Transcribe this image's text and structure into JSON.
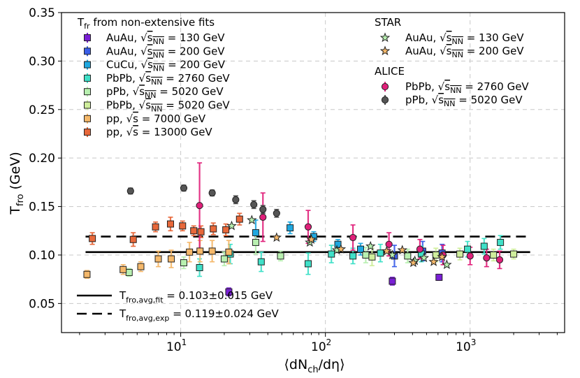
{
  "chart_data": {
    "type": "scatter",
    "xscale": "log",
    "xlim": [
      1.5,
      4500
    ],
    "ylim": [
      0.02,
      0.35
    ],
    "xlabel": "⟨dN_ch/dη⟩",
    "ylabel": "T_fro (GeV)",
    "grid": true,
    "xticks": [
      10,
      100,
      1000
    ],
    "xtick_labels": [
      "10¹",
      "10²",
      "10³"
    ],
    "yticks": [
      0.05,
      0.1,
      0.15,
      0.2,
      0.25,
      0.3,
      0.35
    ],
    "ytick_labels": [
      "0.05",
      "0.10",
      "0.15",
      "0.20",
      "0.25",
      "0.30",
      "0.35"
    ],
    "legend_fit_title": "T_fr from non-extensive fits",
    "legend_star_title": "STAR",
    "legend_alice_title": "ALICE",
    "fit_series": [
      {
        "name": "AuAu, √s_NN = 130 GeV",
        "color": "#7a1fd6",
        "points": [
          [
            21.5,
            0.062,
            0.004
          ],
          [
            290,
            0.073,
            0.004
          ],
          [
            610,
            0.077,
            0.003
          ]
        ]
      },
      {
        "name": "AuAu, √s_NN = 200 GeV",
        "color": "#3a5ee8",
        "points": [
          [
            300,
            0.099,
            0.011
          ],
          [
            470,
            0.104,
            0.01
          ],
          [
            640,
            0.102,
            0.009
          ]
        ]
      },
      {
        "name": "CuCu, √s_NN = 200 GeV",
        "color": "#1fa8e0",
        "points": [
          [
            33,
            0.123,
            0.013
          ],
          [
            57,
            0.128,
            0.006
          ],
          [
            83,
            0.119,
            0.005
          ],
          [
            122,
            0.111,
            0.005
          ],
          [
            175,
            0.106,
            0.006
          ]
        ]
      },
      {
        "name": "PbPb, √s_NN = 2760 GeV",
        "color": "#3fe0c8",
        "points": [
          [
            13.5,
            0.087,
            0.009
          ],
          [
            22,
            0.101,
            0.01
          ],
          [
            36,
            0.093,
            0.01
          ],
          [
            76,
            0.091,
            0.011
          ],
          [
            110,
            0.101,
            0.009
          ],
          [
            155,
            0.099,
            0.008
          ],
          [
            240,
            0.102,
            0.009
          ],
          [
            460,
            0.101,
            0.008
          ],
          [
            960,
            0.106,
            0.008
          ],
          [
            1250,
            0.109,
            0.008
          ],
          [
            1620,
            0.113,
            0.007
          ]
        ]
      },
      {
        "name": "pPb, √s_NN = 5020 GeV",
        "color": "#b8f0b0",
        "points": [
          [
            4.4,
            0.082,
            0.004
          ],
          [
            10.5,
            0.092,
            0.006
          ],
          [
            20,
            0.096,
            0.007
          ],
          [
            33,
            0.113,
            0.012
          ],
          [
            49,
            0.099,
            0.005
          ],
          [
            190,
            0.1,
            0.008
          ],
          [
            370,
            0.099,
            0.007
          ]
        ]
      },
      {
        "name": "PbPb, √s_NN = 5020 GeV",
        "color": "#cfee9c",
        "points": [
          [
            210,
            0.098,
            0.009
          ],
          [
            580,
            0.1,
            0.007
          ],
          [
            850,
            0.101,
            0.006
          ],
          [
            1450,
            0.1,
            0.006
          ],
          [
            2000,
            0.101,
            0.005
          ]
        ]
      },
      {
        "name": "pp, √s = 7000 GeV",
        "color": "#f5b86a",
        "points": [
          [
            2.25,
            0.08,
            0.004
          ],
          [
            4.0,
            0.085,
            0.005
          ],
          [
            5.3,
            0.088,
            0.005
          ],
          [
            7.0,
            0.096,
            0.008
          ],
          [
            8.6,
            0.096,
            0.009
          ],
          [
            11.5,
            0.103,
            0.01
          ],
          [
            13.6,
            0.104,
            0.011
          ],
          [
            16.5,
            0.104,
            0.011
          ],
          [
            21.5,
            0.103,
            0.012
          ]
        ]
      },
      {
        "name": "pp, √s = 13000 GeV",
        "color": "#e8683a",
        "points": [
          [
            2.45,
            0.117,
            0.006
          ],
          [
            4.7,
            0.116,
            0.007
          ],
          [
            6.7,
            0.129,
            0.005
          ],
          [
            8.5,
            0.132,
            0.007
          ],
          [
            10.3,
            0.13,
            0.005
          ],
          [
            12.3,
            0.125,
            0.005
          ],
          [
            13.8,
            0.124,
            0.006
          ],
          [
            16.8,
            0.127,
            0.006
          ],
          [
            20.5,
            0.126,
            0.006
          ],
          [
            25.5,
            0.137,
            0.006
          ]
        ]
      }
    ],
    "star_series": [
      {
        "name": "AuAu, √s_NN = 130 GeV",
        "color": "#b8f0b0",
        "points": [
          [
            22.5,
            0.13
          ],
          [
            31,
            0.136
          ],
          [
            78,
            0.113
          ],
          [
            120,
            0.105
          ],
          [
            205,
            0.109
          ],
          [
            290,
            0.1
          ],
          [
            415,
            0.094
          ],
          [
            480,
            0.097
          ],
          [
            690,
            0.09
          ]
        ]
      },
      {
        "name": "AuAu, √s_NN = 200 GeV",
        "color": "#f5b86a",
        "points": [
          [
            46,
            0.118
          ],
          [
            80,
            0.116
          ],
          [
            128,
            0.106
          ],
          [
            265,
            0.104
          ],
          [
            340,
            0.105
          ],
          [
            405,
            0.092
          ],
          [
            560,
            0.093
          ],
          [
            640,
            0.098
          ]
        ]
      }
    ],
    "alice_series": [
      {
        "name": "PbPb, √s_NN = 2760 GeV",
        "color": "#e0207a",
        "points": [
          [
            13.5,
            0.151,
            0.044
          ],
          [
            37,
            0.139,
            0.025
          ],
          [
            76,
            0.129,
            0.017
          ],
          [
            155,
            0.118,
            0.013
          ],
          [
            275,
            0.111,
            0.012
          ],
          [
            450,
            0.106,
            0.01
          ],
          [
            650,
            0.1,
            0.01
          ],
          [
            1000,
            0.099,
            0.009
          ],
          [
            1300,
            0.097,
            0.009
          ],
          [
            1600,
            0.095,
            0.009
          ]
        ]
      },
      {
        "name": "pPb, √s_NN = 5020 GeV",
        "color": "#555555",
        "points": [
          [
            4.5,
            0.166,
            0.003
          ],
          [
            10.5,
            0.169,
            0.003
          ],
          [
            16.5,
            0.164,
            0.003
          ],
          [
            24,
            0.157,
            0.004
          ],
          [
            32,
            0.152,
            0.004
          ],
          [
            37,
            0.147,
            0.004
          ],
          [
            46,
            0.143,
            0.004
          ]
        ]
      }
    ],
    "lines": [
      {
        "name": "T_fro,avg,fit = 0.103±0.015 GeV",
        "y": 0.103,
        "style": "solid",
        "x_range": [
          2.2,
          2600
        ]
      },
      {
        "name": "T_fro,avg,exp = 0.119±0.024 GeV",
        "y": 0.119,
        "style": "dashed",
        "x_range": [
          2.2,
          2600
        ]
      }
    ]
  }
}
